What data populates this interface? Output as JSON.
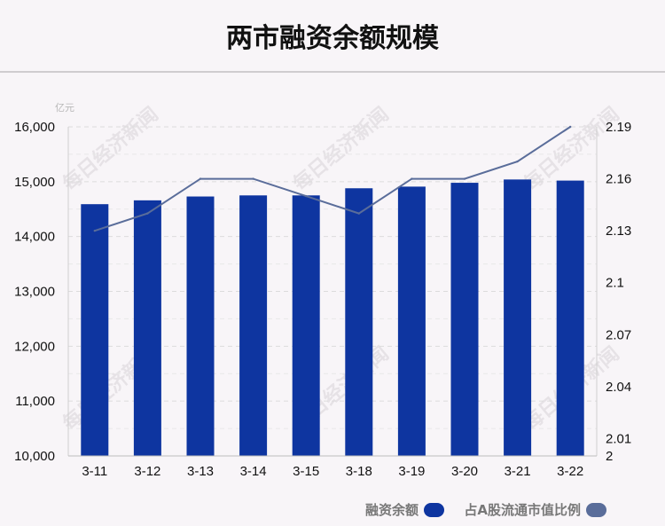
{
  "title": "两市融资余额规模",
  "watermark": "每日经济新闻",
  "chart_data": {
    "type": "bar",
    "categories": [
      "3-11",
      "3-12",
      "3-13",
      "3-14",
      "3-15",
      "3-18",
      "3-19",
      "3-20",
      "3-21",
      "3-22"
    ],
    "series": [
      {
        "name": "融资余额",
        "type": "bar",
        "axis": "left",
        "color": "#0e35a0",
        "values": [
          14590,
          14660,
          14730,
          14750,
          14750,
          14880,
          14910,
          14980,
          15040,
          15020
        ]
      },
      {
        "name": "占A股流通市值比例",
        "type": "line",
        "axis": "right",
        "color": "#5a6d9a",
        "values": [
          2.13,
          2.14,
          2.16,
          2.16,
          2.15,
          2.14,
          2.16,
          2.16,
          2.17,
          2.19
        ]
      }
    ],
    "y_left": {
      "unit": "亿元",
      "ylim": [
        10000,
        16000
      ],
      "ticks": [
        10000,
        11000,
        12000,
        13000,
        14000,
        15000,
        16000
      ],
      "tick_labels": [
        "10,000",
        "11,000",
        "12,000",
        "13,000",
        "14,000",
        "15,000",
        "16,000"
      ]
    },
    "y_right": {
      "ylim": [
        2,
        2.19
      ],
      "ticks": [
        2,
        2.01,
        2.04,
        2.07,
        2.1,
        2.13,
        2.16,
        2.19
      ],
      "tick_labels": [
        "2",
        "2.01",
        "2.04",
        "2.07",
        "2.1",
        "2.13",
        "2.16",
        "2.19"
      ]
    },
    "grid": true,
    "legend_position": "bottom-right"
  }
}
